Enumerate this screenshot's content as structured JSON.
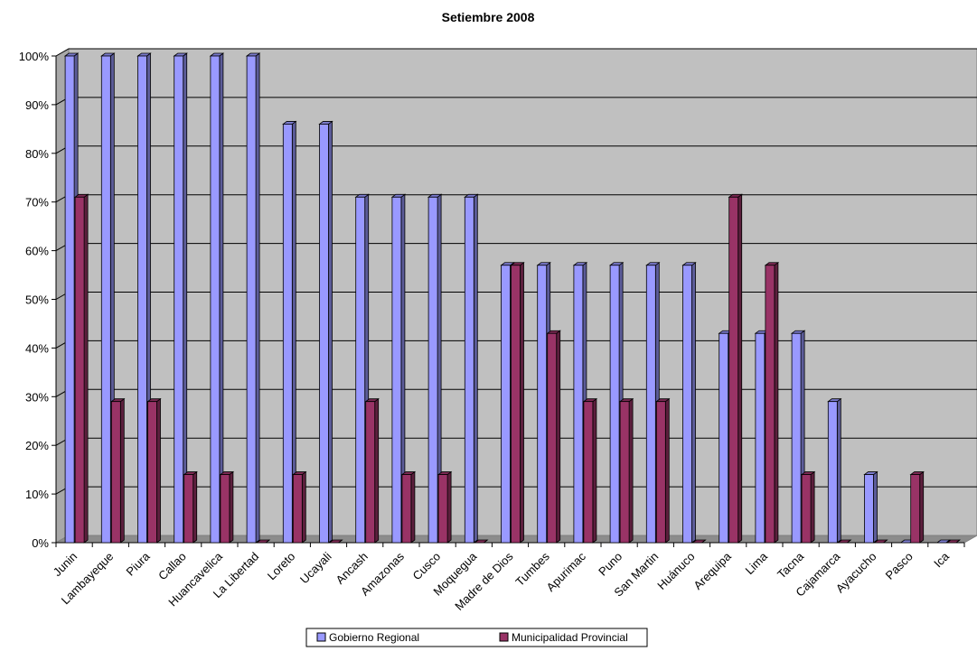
{
  "chart_data": {
    "type": "bar",
    "title": "Setiembre 2008",
    "xlabel": "",
    "ylabel": "",
    "ylim": [
      0,
      100
    ],
    "y_ticks": [
      "0%",
      "10%",
      "20%",
      "30%",
      "40%",
      "50%",
      "60%",
      "70%",
      "80%",
      "90%",
      "100%"
    ],
    "grid": true,
    "legend_position": "bottom",
    "categories": [
      "Junin",
      "Lambayeque",
      "Piura",
      "Callao",
      "Huancavelica",
      "La Libertad",
      "Loreto",
      "Ucayali",
      "Ancash",
      "Amazonas",
      "Cusco",
      "Moquegua",
      "Madre de Dios",
      "Tumbes",
      "Apurimac",
      "Puno",
      "San Martin",
      "Huánuco",
      "Arequipa",
      "Lima",
      "Tacna",
      "Cajamarca",
      "Ayacucho",
      "Pasco",
      "Ica"
    ],
    "series": [
      {
        "name": "Gobierno Regional",
        "color": "#9999ff",
        "values": [
          100,
          100,
          100,
          100,
          100,
          100,
          86,
          86,
          71,
          71,
          71,
          71,
          57,
          57,
          57,
          57,
          57,
          57,
          43,
          43,
          43,
          29,
          14,
          0,
          0
        ]
      },
      {
        "name": "Municipalidad Provincial",
        "color": "#993366",
        "values": [
          71,
          29,
          29,
          14,
          14,
          0,
          14,
          0,
          29,
          14,
          14,
          0,
          57,
          43,
          29,
          29,
          29,
          0,
          71,
          57,
          14,
          0,
          0,
          14,
          0
        ]
      }
    ],
    "plot_background": "#c0c0c0"
  }
}
